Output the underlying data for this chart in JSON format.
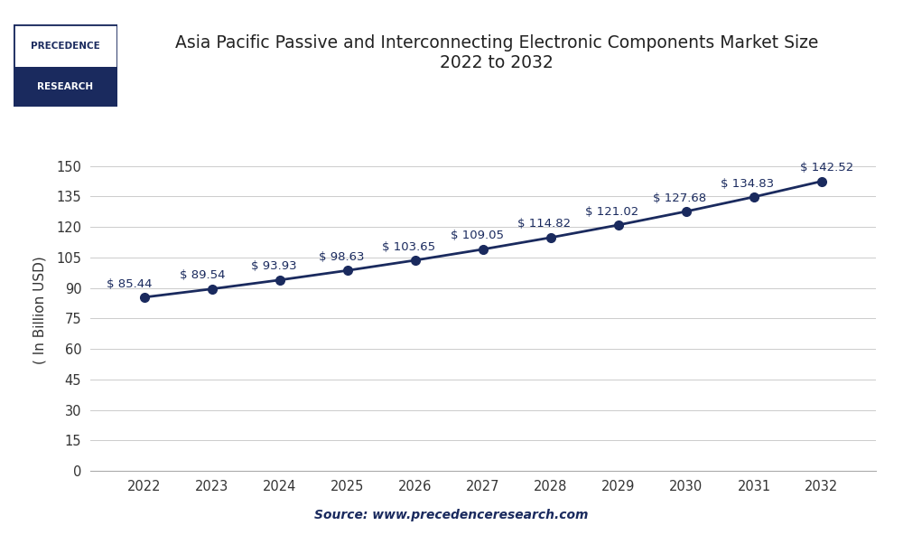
{
  "title_line1": "Asia Pacific Passive and Interconnecting Electronic Components Market Size",
  "title_line2": "2022 to 2032",
  "ylabel": "( In Billion USD)",
  "years": [
    2022,
    2023,
    2024,
    2025,
    2026,
    2027,
    2028,
    2029,
    2030,
    2031,
    2032
  ],
  "values": [
    85.44,
    89.54,
    93.93,
    98.63,
    103.65,
    109.05,
    114.82,
    121.02,
    127.68,
    134.83,
    142.52
  ],
  "line_color": "#1a2a5e",
  "marker_color": "#1a2a5e",
  "background_color": "#ffffff",
  "plot_bg_color": "#ffffff",
  "grid_color": "#cccccc",
  "yticks": [
    0,
    15,
    30,
    45,
    60,
    75,
    90,
    105,
    120,
    135,
    150
  ],
  "ylim": [
    0,
    158
  ],
  "xlim_left": 2021.2,
  "xlim_right": 2032.8,
  "source_text": "Source: www.precedenceresearch.com",
  "annotation_fontsize": 9.5,
  "title_fontsize": 13.5,
  "axis_label_fontsize": 11,
  "tick_fontsize": 10.5,
  "logo_text_line1": "PRECEDENCE",
  "logo_text_line2": "RESEARCH",
  "logo_color": "#1a2a5e",
  "border_color": "#1a2a5e"
}
